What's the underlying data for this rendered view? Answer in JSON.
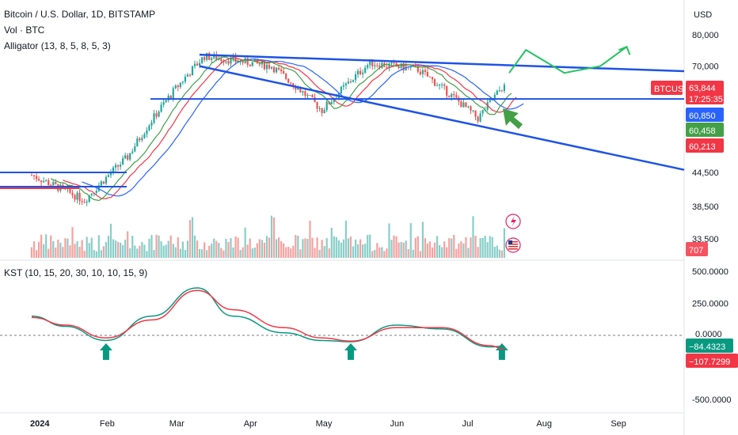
{
  "header": {
    "symbol_line": "Bitcoin / U.S. Dollar, 1D, BITSTAMP",
    "volume_label": "Vol · BTC",
    "alligator_label": "Alligator (13, 8, 5, 8, 5, 3)",
    "kst_label": "KST (10, 15, 20, 30, 10, 10, 15, 9)",
    "currency": "USD"
  },
  "price_axis": {
    "ticks": [
      "80,000",
      "70,000",
      "44,500",
      "38,500",
      "33,500"
    ],
    "tags": [
      {
        "label": "BTCUSD",
        "color": "#f23645"
      },
      {
        "label": "63,844",
        "color": "#f23645"
      },
      {
        "label": "17:25:35",
        "color": "#f23645"
      },
      {
        "label": "60,850",
        "color": "#2962ff"
      },
      {
        "label": "60,458",
        "color": "#43a047"
      },
      {
        "label": "60,213",
        "color": "#f23645"
      },
      {
        "label": "707",
        "color": "#f7525f"
      }
    ]
  },
  "kst_axis": {
    "ticks": [
      "500.0000",
      "250.0000",
      "0.0000",
      "-500.0000"
    ],
    "tags": [
      {
        "label": "−84.4323",
        "color": "#089981"
      },
      {
        "label": "−107.7299",
        "color": "#f23645"
      }
    ]
  },
  "time_axis": {
    "labels": [
      "2024",
      "Feb",
      "Mar",
      "Apr",
      "May",
      "Jun",
      "Jul",
      "Aug",
      "Sep"
    ]
  },
  "colors": {
    "up": "#26a69a",
    "down": "#ef5350",
    "trendline": "#1e53e5",
    "projection": "#22c55e",
    "alligator_jaw": "#2962ff",
    "alligator_teeth": "#f23645",
    "alligator_lips": "#43a047"
  },
  "icons": [
    "lightning-icon",
    "us-flag-icon"
  ],
  "chart_data": {
    "type": "candlestick",
    "symbol": "BTCUSD",
    "interval": "1D",
    "exchange": "BITSTAMP",
    "price_range": [
      30000,
      84000
    ],
    "scale": "log",
    "last_price": 63844,
    "alligator": {
      "jaw": 60850,
      "teeth": 60213,
      "lips": 60458
    },
    "volume_last": 707,
    "key_price_points": [
      {
        "date": "2024-01-01",
        "close": 44000
      },
      {
        "date": "2024-01-23",
        "close": 39500
      },
      {
        "date": "2024-02-10",
        "close": 47500
      },
      {
        "date": "2024-02-28",
        "close": 62000
      },
      {
        "date": "2024-03-13",
        "close": 73000
      },
      {
        "date": "2024-04-10",
        "close": 70000
      },
      {
        "date": "2024-05-01",
        "close": 58000
      },
      {
        "date": "2024-05-21",
        "close": 71000
      },
      {
        "date": "2024-06-10",
        "close": 69000
      },
      {
        "date": "2024-07-05",
        "close": 56000
      },
      {
        "date": "2024-07-15",
        "close": 63844
      }
    ],
    "kst": {
      "range": [
        -600,
        500
      ],
      "ticks": [
        500,
        250,
        0,
        -500
      ],
      "kst_last": -84.4323,
      "signal_last": -107.7299,
      "series": [
        {
          "name": "KST",
          "dates": [
            "2024-01-01",
            "2024-01-15",
            "2024-02-01",
            "2024-02-20",
            "2024-03-10",
            "2024-03-25",
            "2024-04-15",
            "2024-05-01",
            "2024-05-13",
            "2024-06-01",
            "2024-06-20",
            "2024-07-10",
            "2024-07-16"
          ],
          "values": [
            150,
            70,
            -40,
            150,
            370,
            150,
            20,
            -40,
            -50,
            80,
            50,
            -90,
            -84
          ]
        },
        {
          "name": "Signal",
          "dates": [
            "2024-01-01",
            "2024-01-15",
            "2024-02-01",
            "2024-02-20",
            "2024-03-10",
            "2024-03-25",
            "2024-04-15",
            "2024-05-01",
            "2024-05-13",
            "2024-06-01",
            "2024-06-20",
            "2024-07-10",
            "2024-07-16"
          ],
          "values": [
            140,
            80,
            -20,
            120,
            350,
            200,
            60,
            -20,
            -45,
            60,
            60,
            -80,
            -107
          ]
        }
      ]
    },
    "annotations": [
      {
        "type": "trendline",
        "label": "upper descending resistance",
        "from": {
          "date": "2024-03-05",
          "price": 73500
        },
        "to": {
          "date": "2024-09-30",
          "price": 68500
        }
      },
      {
        "type": "trendline",
        "label": "lower descending support",
        "from": {
          "date": "2024-03-05",
          "price": 70000
        },
        "to": {
          "date": "2024-09-30",
          "price": 45000
        }
      },
      {
        "type": "horizontal",
        "label": "support line",
        "price": 60850
      },
      {
        "type": "projection",
        "label": "bullish path",
        "points": [
          {
            "date": "2024-07-18",
            "price": 68000
          },
          {
            "date": "2024-07-25",
            "price": 75000
          },
          {
            "date": "2024-08-10",
            "price": 68000
          },
          {
            "date": "2024-08-25",
            "price": 70000
          },
          {
            "date": "2024-09-05",
            "price": 76000
          }
        ]
      },
      {
        "type": "arrow",
        "color": "green",
        "direction": "up",
        "pane": "KST",
        "date": "2024-02-01"
      },
      {
        "type": "arrow",
        "color": "green",
        "direction": "up",
        "pane": "KST",
        "date": "2024-05-13"
      },
      {
        "type": "arrow",
        "color": "green",
        "direction": "up",
        "pane": "KST",
        "date": "2024-07-15"
      },
      {
        "type": "arrow",
        "color": "green",
        "direction": "up-left",
        "pane": "price",
        "date": "2024-07-18"
      }
    ]
  }
}
